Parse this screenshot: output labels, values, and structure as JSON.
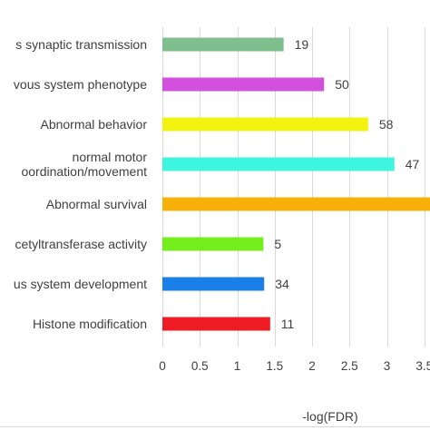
{
  "chart_data": {
    "type": "bar",
    "orientation": "horizontal",
    "categories": [
      "s synaptic transmission",
      "vous system phenotype",
      "Abnormal behavior",
      [
        "normal motor",
        "oordination/movement"
      ],
      "Abnormal survival",
      "cetyltransferase activity",
      "us system development",
      "Histone modification"
    ],
    "values": [
      1.62,
      2.16,
      2.75,
      3.1,
      3.62,
      1.35,
      1.36,
      1.44
    ],
    "data_labels": [
      "19",
      "50",
      "58",
      "47",
      "",
      "5",
      "34",
      "11"
    ],
    "colors": [
      "#7fbf8e",
      "#d34fde",
      "#f3f312",
      "#3ef5e0",
      "#f8b10b",
      "#74ee1d",
      "#1a7fe6",
      "#ee1c25"
    ],
    "x_ticks": [
      "0",
      "0.5",
      "1",
      "1.5",
      "2",
      "2.5",
      "3",
      "3.5"
    ],
    "xlim": [
      0,
      3.5
    ],
    "xlabel": "-log(FDR)",
    "ylabel": "",
    "title": "",
    "grid": "vertical",
    "grid_color": "#d9d9d9",
    "legend": "none"
  }
}
